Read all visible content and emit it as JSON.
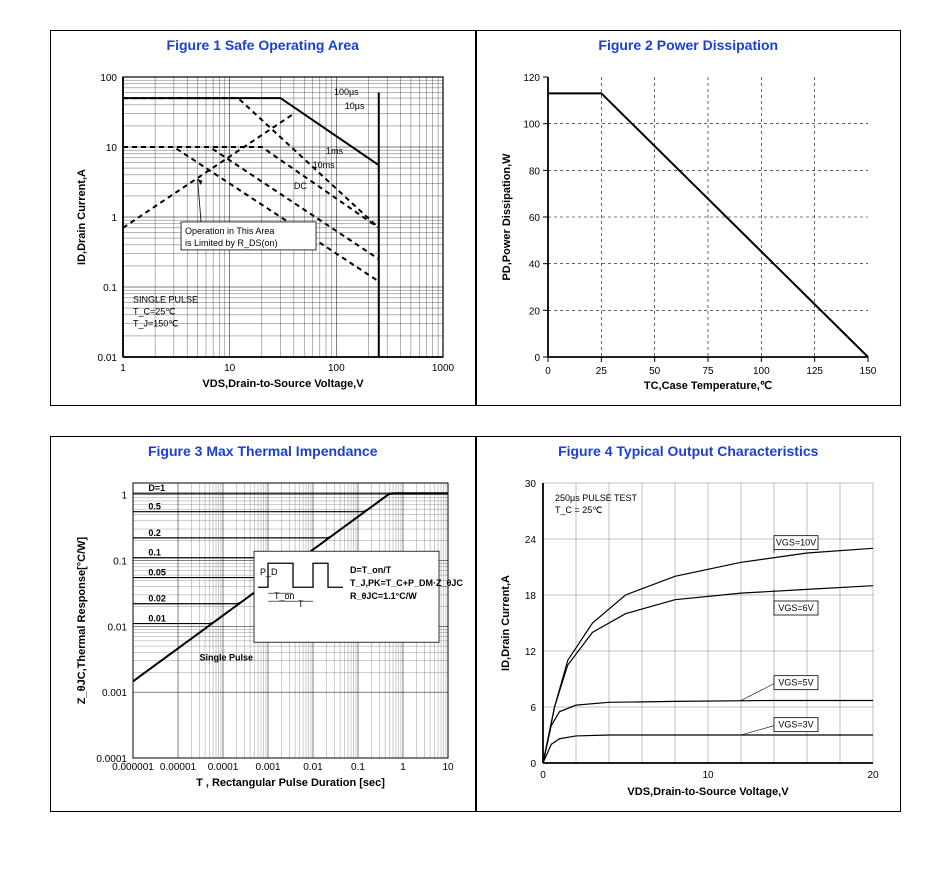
{
  "figure1": {
    "title": "Figure 1   Safe Operating Area",
    "type": "line-loglog",
    "xlabel": "V_DS,Drain-to-Source Voltage,V",
    "ylabel": "I_D,Drain Current,A",
    "xlim": [
      1,
      1000
    ],
    "ylim": [
      0.01,
      100
    ],
    "xticks": [
      1,
      10,
      100,
      1000
    ],
    "yticks": [
      0.01,
      0.1,
      1,
      10,
      100
    ],
    "line_color": "#000000",
    "background_color": "#ffffff",
    "grid": true,
    "minor_ticks": true,
    "soa_boundary_vmax": 250,
    "rds_line": {
      "from": [
        1,
        0.7
      ],
      "to": [
        40,
        30
      ]
    },
    "pulse_curves": [
      {
        "label": "10µs",
        "flat_i": 50,
        "knee_v": 30,
        "end_v": 250,
        "end_i": 5.5
      },
      {
        "label": "100µs",
        "flat_i": 50,
        "knee_v": 12,
        "end_v": 250,
        "end_i": 0.7
      },
      {
        "label": "1ms",
        "flat_i": 10,
        "knee_v": 20,
        "end_v": 250,
        "end_i": 0.7
      },
      {
        "label": "10ms",
        "flat_i": 10,
        "knee_v": 6.5,
        "end_v": 250,
        "end_i": 0.25
      },
      {
        "label": "DC",
        "flat_i": 10,
        "knee_v": 3,
        "end_v": 250,
        "end_i": 0.12
      }
    ],
    "annotation_box": "Operation in This Area\nis Limited by R_DS(on)",
    "condition_text": [
      "SINGLE PULSE",
      "T_C=25℃",
      "T_J=150℃"
    ]
  },
  "figure2": {
    "title": "Figure 2   Power Dissipation",
    "type": "line",
    "xlabel": "T_C,Case Temperature,℃",
    "ylabel": "P_D,Power Dissipation,W",
    "xlim": [
      0,
      150
    ],
    "ylim": [
      0,
      120
    ],
    "xtick_step": 25,
    "ytick_step": 20,
    "line_color": "#000000",
    "background_color": "#ffffff",
    "grid_style": "dashed",
    "data": [
      {
        "x": 0,
        "y": 113
      },
      {
        "x": 25,
        "y": 113
      },
      {
        "x": 150,
        "y": 0
      }
    ]
  },
  "figure3": {
    "title": "Figure 3   Max Thermal Impendance",
    "type": "line-loglog",
    "xlabel": "T , Rectangular Pulse Duration [sec]",
    "ylabel": "Z_θJC,Thermal Response[°C/W]",
    "xlim": [
      1e-06,
      10
    ],
    "ylim": [
      0.0001,
      2
    ],
    "xticks_labels": [
      "0.000001",
      "0.00001",
      "0.0001",
      "0.001",
      "0.01",
      "0.1",
      "1",
      "10"
    ],
    "yticks": [
      0.0001,
      0.001,
      0.01,
      0.1,
      1
    ],
    "line_color": "#000000",
    "background_color": "#ffffff",
    "duty_curves": [
      {
        "label": "D=1",
        "steady": 1.05
      },
      {
        "label": "0.5",
        "steady": 0.55
      },
      {
        "label": "0.2",
        "steady": 0.22
      },
      {
        "label": "0.1",
        "steady": 0.11
      },
      {
        "label": "0.05",
        "steady": 0.055
      },
      {
        "label": "0.02",
        "steady": 0.022
      },
      {
        "label": "0.01",
        "steady": 0.011
      }
    ],
    "single_pulse_label": "Single Pulse",
    "inset_labels": {
      "pd": "P_D",
      "ton": "T_on",
      "t": "T"
    },
    "formula_lines": [
      "D=T_on/T",
      "T_J,PK=T_C+P_DM·Z_θJC·R_θJC",
      "R_θJC=1.1°C/W"
    ]
  },
  "figure4": {
    "title": "Figure 4 Typical Output Characteristics",
    "type": "line",
    "xlabel": "V_DS,Drain-to-Source Voltage,V",
    "ylabel": "I_D,Drain Current,A",
    "xlim": [
      0,
      20
    ],
    "ylim": [
      0,
      30
    ],
    "xtick_step": 10,
    "ytick_step": 6,
    "line_color": "#000000",
    "background_color": "#ffffff",
    "grid_style": "solid-light",
    "condition_text": [
      "250µs PULSE TEST",
      "T_C = 25℃"
    ],
    "vgs_curves": [
      {
        "label": "VGS=10V",
        "points": [
          [
            0,
            0
          ],
          [
            0.7,
            6
          ],
          [
            1.5,
            11
          ],
          [
            3,
            15
          ],
          [
            5,
            18
          ],
          [
            8,
            20
          ],
          [
            12,
            21.5
          ],
          [
            16,
            22.5
          ],
          [
            20,
            23
          ]
        ]
      },
      {
        "label": "VGS=6V",
        "points": [
          [
            0,
            0
          ],
          [
            0.7,
            6
          ],
          [
            1.5,
            10.5
          ],
          [
            3,
            14
          ],
          [
            5,
            16
          ],
          [
            8,
            17.5
          ],
          [
            12,
            18.2
          ],
          [
            16,
            18.6
          ],
          [
            20,
            19
          ]
        ]
      },
      {
        "label": "VGS=5V",
        "points": [
          [
            0,
            0
          ],
          [
            0.5,
            4
          ],
          [
            1,
            5.5
          ],
          [
            2,
            6.2
          ],
          [
            4,
            6.5
          ],
          [
            8,
            6.6
          ],
          [
            14,
            6.7
          ],
          [
            20,
            6.7
          ]
        ]
      },
      {
        "label": "VGS=3V",
        "points": [
          [
            0,
            0
          ],
          [
            0.5,
            2
          ],
          [
            1,
            2.6
          ],
          [
            2,
            2.9
          ],
          [
            4,
            3
          ],
          [
            8,
            3
          ],
          [
            14,
            3
          ],
          [
            20,
            3
          ]
        ]
      }
    ],
    "callout_pos": {
      "VGS=10V": [
        14,
        23.5
      ],
      "VGS=6V": [
        14,
        16.5
      ],
      "VGS=5V": [
        14,
        8.5
      ],
      "VGS=3V": [
        14,
        4
      ]
    }
  },
  "colors": {
    "title": "#1a3fd6",
    "border": "#000000",
    "axis": "#000000",
    "grid": "#000000"
  }
}
